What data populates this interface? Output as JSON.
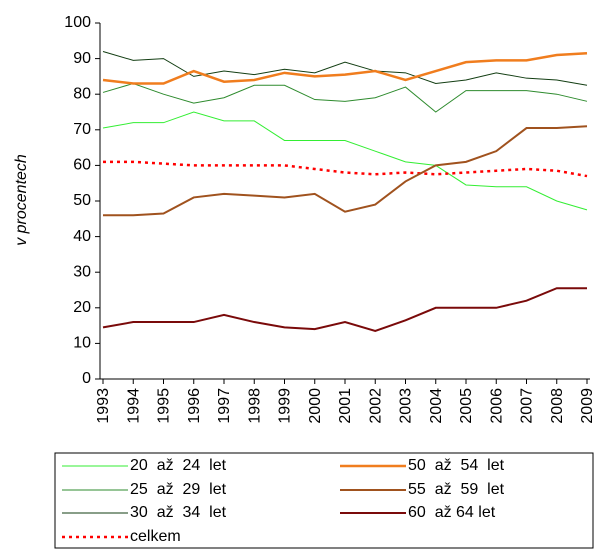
{
  "chart_data": {
    "type": "line",
    "y_label": "v procentech",
    "categories": [
      "1993",
      "1994",
      "1995",
      "1996",
      "1997",
      "1998",
      "1999",
      "2000",
      "2001",
      "2002",
      "2003",
      "2004",
      "2005",
      "2006",
      "2007",
      "2008",
      "2009"
    ],
    "ylim": [
      0,
      100
    ],
    "yticks": [
      0,
      10,
      20,
      30,
      40,
      50,
      60,
      70,
      80,
      90,
      100
    ],
    "series": [
      {
        "name": "20  až  24  let",
        "color": "#33ee33",
        "width": 1,
        "values": [
          70.5,
          72,
          72,
          75,
          72.5,
          72.5,
          67,
          67,
          67,
          64,
          61,
          60,
          54.5,
          54,
          54,
          50,
          47.5
        ]
      },
      {
        "name": "25  až  29  let",
        "color": "#2e8b2e",
        "width": 1,
        "values": [
          80.5,
          83,
          80,
          77.5,
          79,
          82.5,
          82.5,
          78.5,
          78,
          79,
          82,
          75,
          81,
          81,
          81,
          80,
          78
        ]
      },
      {
        "name": "30  až  34  let",
        "color": "#123d12",
        "width": 1,
        "values": [
          92,
          89.5,
          90,
          85,
          86.5,
          85.5,
          87,
          86,
          89,
          86.5,
          86,
          83,
          84,
          86,
          84.5,
          84,
          82.5
        ]
      },
      {
        "name": "celkem",
        "color": "#ff0000",
        "width": 2.5,
        "dashed": true,
        "values": [
          61,
          61,
          60.5,
          60,
          60,
          60,
          60,
          59,
          58,
          57.5,
          58,
          57.5,
          58,
          58.5,
          59,
          58.5,
          57
        ]
      },
      {
        "name": "50  až  54  let",
        "color": "#f07d1e",
        "width": 2.5,
        "values": [
          84,
          83,
          83,
          86.5,
          83.5,
          84,
          86,
          85,
          85.5,
          86.5,
          84,
          86.5,
          89,
          89.5,
          89.5,
          91,
          91.5
        ]
      },
      {
        "name": "55  až  59  let",
        "color": "#a0521e",
        "width": 2,
        "values": [
          46,
          46,
          46.5,
          51,
          52,
          51.5,
          51,
          52,
          47,
          49,
          55.5,
          60,
          61,
          64,
          70.5,
          70.5,
          71
        ]
      },
      {
        "name": "60  až 64 let",
        "color": "#7a0a0a",
        "width": 2,
        "values": [
          14.5,
          16,
          16,
          16,
          18,
          16,
          14.5,
          14,
          16,
          13.5,
          16.5,
          20,
          20,
          20,
          22,
          25.5,
          25.5
        ]
      }
    ]
  }
}
